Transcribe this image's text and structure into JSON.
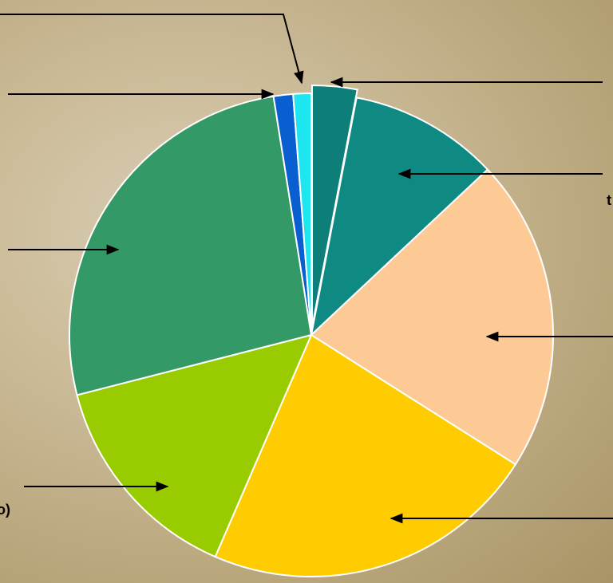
{
  "chart_data": {
    "type": "pie",
    "categories": [
      null,
      null,
      null,
      null,
      null,
      null,
      null,
      null
    ],
    "values": [
      3,
      10,
      21,
      22.5,
      14.5,
      26.5,
      1.3,
      1.2
    ],
    "colors": [
      "#0e7f78",
      "#0f8a82",
      "#fdca96",
      "#fecc00",
      "#99cc00",
      "#339966",
      "#0a5fd0",
      "#1ee6f0"
    ],
    "exploded": [
      true,
      false,
      false,
      false,
      false,
      false,
      false,
      false
    ],
    "annotations": [
      "t",
      "o)"
    ]
  }
}
